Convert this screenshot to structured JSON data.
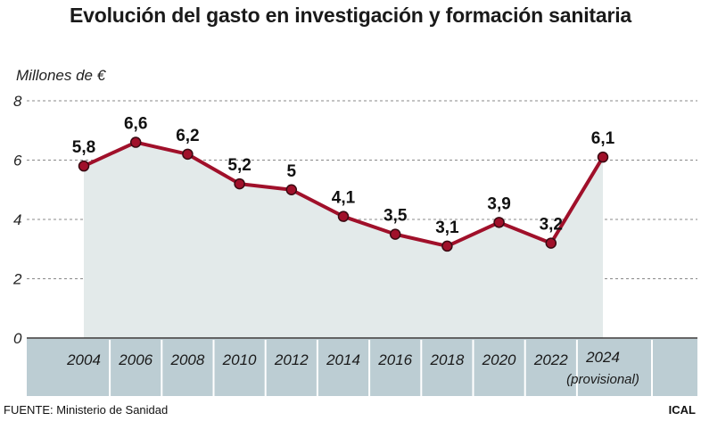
{
  "title": "Evolución del gasto en investigación y formación sanitaria",
  "source": "FUENTE: Ministerio de Sanidad",
  "credit": "ICAL",
  "colors": {
    "line": "#a0102a",
    "marker": "#a0102a",
    "area": "#e3eaea",
    "band": "#bccdd3",
    "grid": "#888888"
  },
  "chart_data": {
    "type": "line",
    "ylabel": "Millones de €",
    "ylim": [
      0,
      8
    ],
    "yticks": [
      0,
      2,
      4,
      6,
      8
    ],
    "grid": "horizontal dashed",
    "x": [
      "2004",
      "2006",
      "2008",
      "2010",
      "2012",
      "2014",
      "2016",
      "2018",
      "2020",
      "2022",
      "2024"
    ],
    "x_sublabels": [
      "",
      "",
      "",
      "",
      "",
      "",
      "",
      "",
      "",
      "",
      "(provisional)"
    ],
    "values": [
      5.8,
      6.6,
      6.2,
      5.2,
      5.0,
      4.1,
      3.5,
      3.1,
      3.9,
      3.2,
      6.1
    ],
    "data_labels": [
      "5,8",
      "6,6",
      "6,2",
      "5,2",
      "5",
      "4,1",
      "3,5",
      "3,1",
      "3,9",
      "3,2",
      "6,1"
    ]
  }
}
